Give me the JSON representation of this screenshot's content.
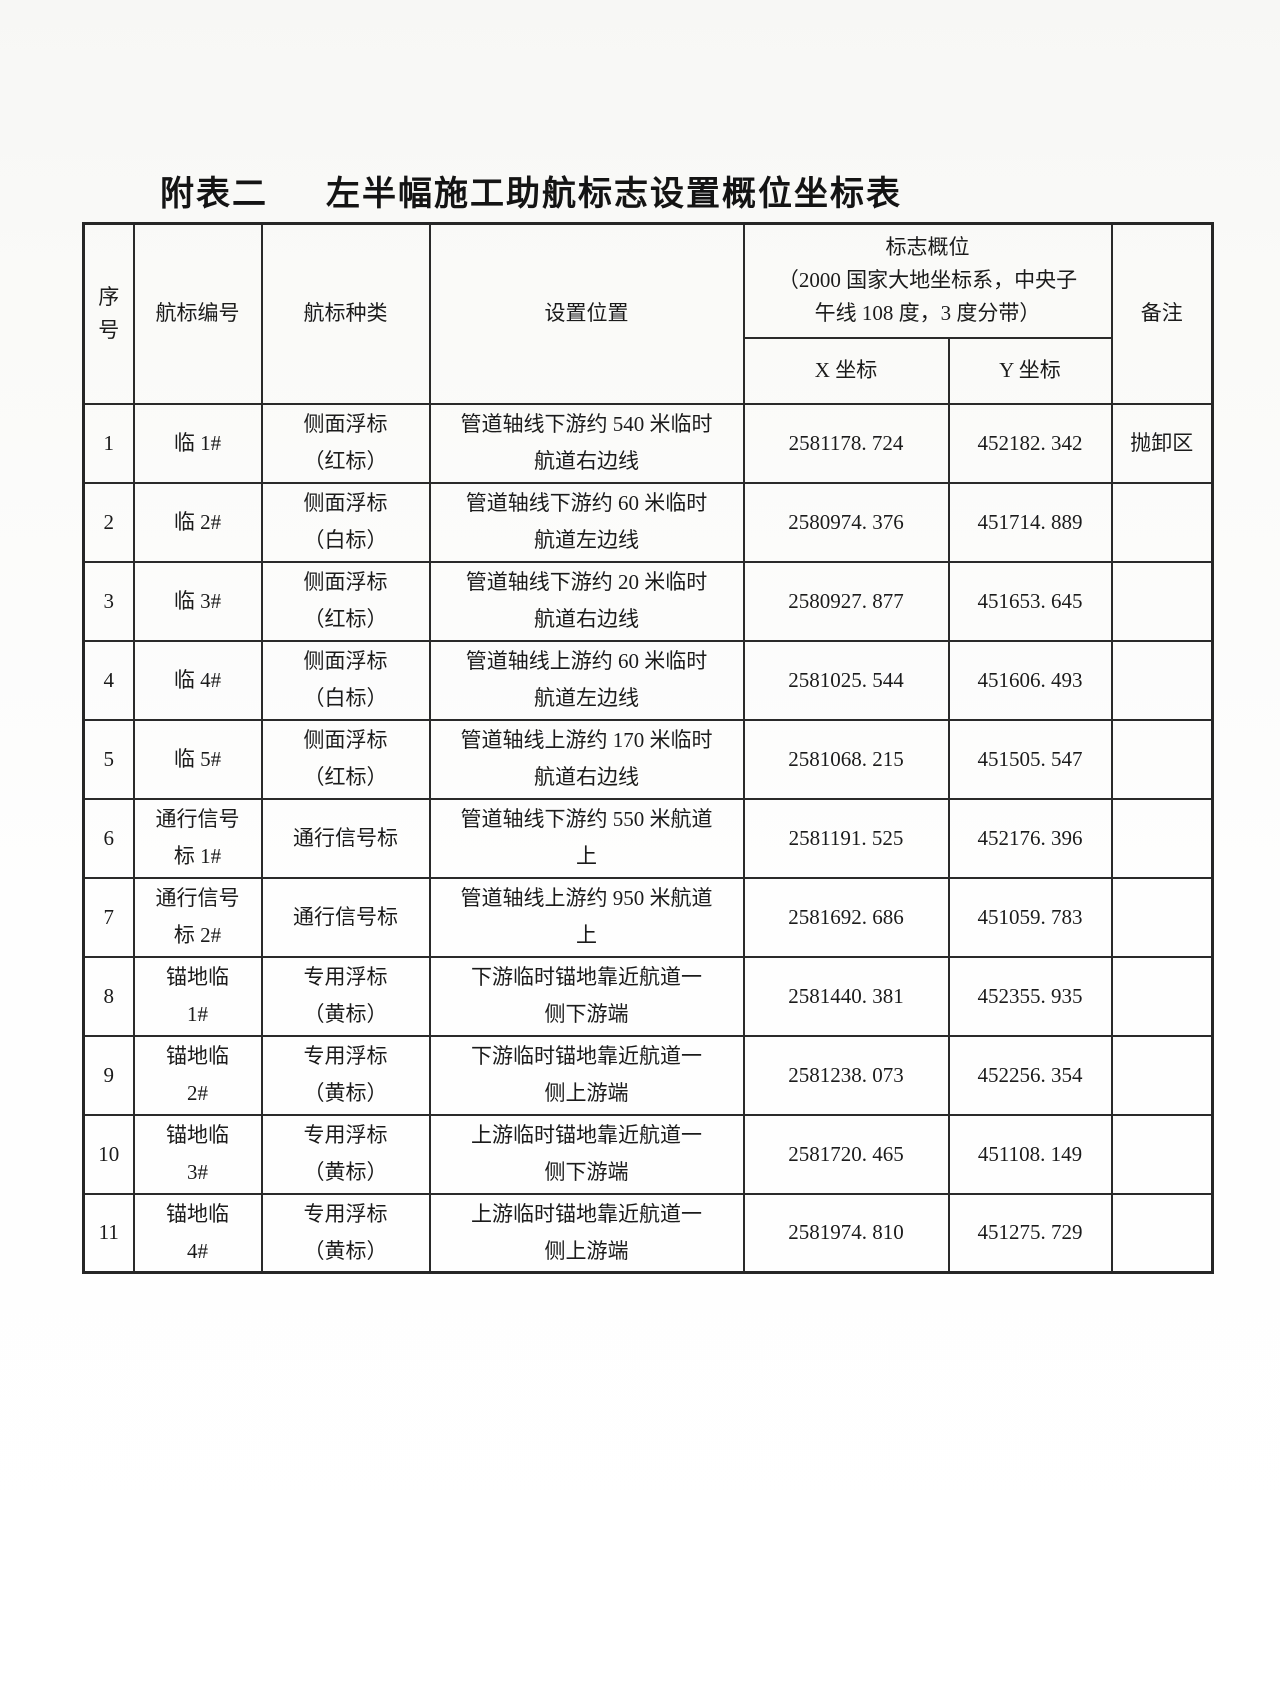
{
  "title": {
    "label": "附表二",
    "text": "左半幅施工助航标志设置概位坐标表"
  },
  "colors": {
    "border": "#262626",
    "text": "#1b1b1b",
    "paper": "#f7f7f5"
  },
  "table": {
    "headers": {
      "seq": "序\n号",
      "beacon_id": "航标编号",
      "beacon_type": "航标种类",
      "position": "设置位置",
      "coords_group": "标志概位\n（2000 国家大地坐标系，中央子\n午线 108 度，3 度分带）",
      "x": "X 坐标",
      "y": "Y 坐标",
      "remarks": "备注"
    },
    "column_keys": [
      "seq",
      "beacon-id",
      "beacon-type",
      "position",
      "x-coordinate",
      "y-coordinate",
      "remarks"
    ],
    "rows": [
      [
        "1",
        "临 1#",
        "侧面浮标\n（红标）",
        "管道轴线下游约 540 米临时\n航道右边线",
        "2581178. 724",
        "452182. 342",
        "抛卸区"
      ],
      [
        "2",
        "临 2#",
        "侧面浮标\n（白标）",
        "管道轴线下游约 60 米临时\n航道左边线",
        "2580974. 376",
        "451714. 889",
        ""
      ],
      [
        "3",
        "临 3#",
        "侧面浮标\n（红标）",
        "管道轴线下游约 20 米临时\n航道右边线",
        "2580927. 877",
        "451653. 645",
        ""
      ],
      [
        "4",
        "临 4#",
        "侧面浮标\n（白标）",
        "管道轴线上游约 60 米临时\n航道左边线",
        "2581025. 544",
        "451606. 493",
        ""
      ],
      [
        "5",
        "临 5#",
        "侧面浮标\n（红标）",
        "管道轴线上游约 170 米临时\n航道右边线",
        "2581068. 215",
        "451505. 547",
        ""
      ],
      [
        "6",
        "通行信号\n标 1#",
        "通行信号标",
        "管道轴线下游约 550 米航道\n上",
        "2581191. 525",
        "452176. 396",
        ""
      ],
      [
        "7",
        "通行信号\n标 2#",
        "通行信号标",
        "管道轴线上游约 950 米航道\n上",
        "2581692. 686",
        "451059. 783",
        ""
      ],
      [
        "8",
        "锚地临\n1#",
        "专用浮标\n（黄标）",
        "下游临时锚地靠近航道一\n侧下游端",
        "2581440. 381",
        "452355. 935",
        ""
      ],
      [
        "9",
        "锚地临\n2#",
        "专用浮标\n（黄标）",
        "下游临时锚地靠近航道一\n侧上游端",
        "2581238. 073",
        "452256. 354",
        ""
      ],
      [
        "10",
        "锚地临\n3#",
        "专用浮标\n（黄标）",
        "上游临时锚地靠近航道一\n侧下游端",
        "2581720. 465",
        "451108. 149",
        ""
      ],
      [
        "11",
        "锚地临\n4#",
        "专用浮标\n（黄标）",
        "上游临时锚地靠近航道一\n侧上游端",
        "2581974. 810",
        "451275. 729",
        ""
      ]
    ]
  }
}
